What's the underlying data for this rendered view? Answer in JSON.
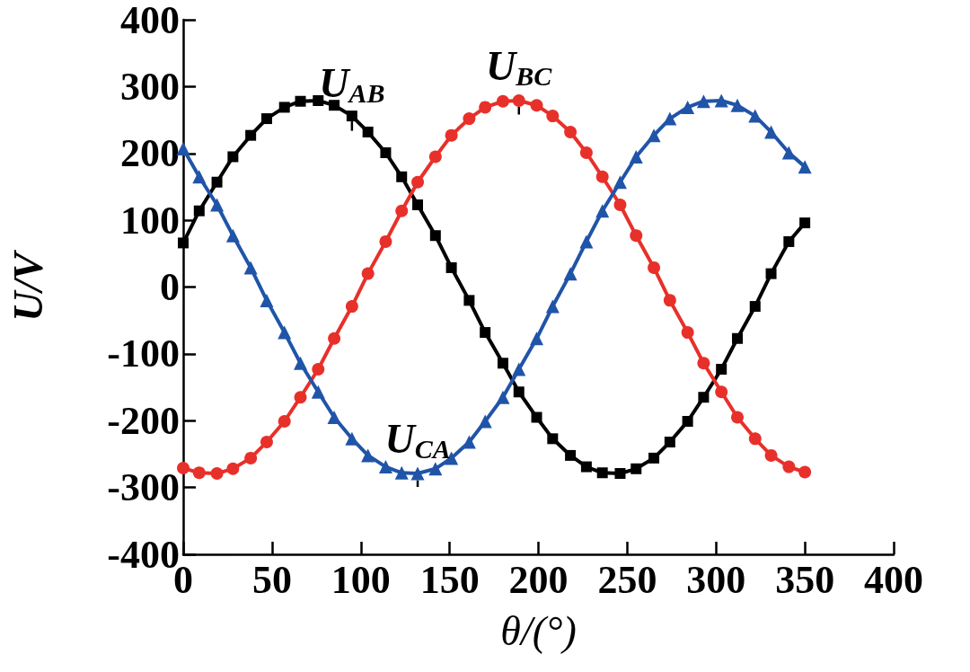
{
  "chart_data": {
    "type": "line",
    "xlabel": "θ/(°)",
    "ylabel": "U/V",
    "x": [
      0,
      9,
      19,
      28,
      38,
      47,
      57,
      66,
      76,
      85,
      95,
      104,
      114,
      123,
      132,
      142,
      151,
      161,
      170,
      180,
      189,
      199,
      208,
      218,
      227,
      236,
      246,
      255,
      265,
      274,
      284,
      293,
      303,
      312,
      322,
      331,
      341,
      350
    ],
    "series": [
      {
        "name": "U$_{AB}$",
        "color": "#000000",
        "marker": "square",
        "values": [
          66,
          114,
          157,
          195,
          227,
          252,
          269,
          278,
          279,
          272,
          256,
          232,
          201,
          165,
          123,
          77,
          29,
          -20,
          -68,
          -114,
          -157,
          -195,
          -227,
          -252,
          -269,
          -278,
          -279,
          -272,
          -256,
          -232,
          -201,
          -165,
          -123,
          -77,
          -29,
          20,
          68,
          96
        ]
      },
      {
        "name": "U$_{BC}$",
        "color": "#e8302a",
        "marker": "circle",
        "values": [
          -271,
          -278,
          -279,
          -272,
          -256,
          -232,
          -201,
          -165,
          -123,
          -77,
          -29,
          20,
          68,
          114,
          157,
          195,
          227,
          252,
          269,
          278,
          279,
          272,
          256,
          232,
          201,
          165,
          123,
          77,
          29,
          -20,
          -68,
          -114,
          -157,
          -195,
          -227,
          -252,
          -269,
          -277
        ]
      },
      {
        "name": "U$_{CA}$",
        "color": "#2054a8",
        "marker": "triangle",
        "values": [
          207,
          165,
          123,
          77,
          29,
          -20,
          -68,
          -114,
          -157,
          -195,
          -227,
          -252,
          -269,
          -278,
          -279,
          -272,
          -256,
          -232,
          -201,
          -165,
          -123,
          -77,
          -29,
          20,
          68,
          114,
          157,
          195,
          227,
          252,
          269,
          278,
          279,
          272,
          256,
          232,
          201,
          180
        ]
      }
    ],
    "xlim": [
      0,
      400
    ],
    "xticks": [
      0,
      50,
      100,
      150,
      200,
      250,
      300,
      350,
      400
    ],
    "ylim": [
      -400,
      400
    ],
    "yticks": [
      -400,
      -300,
      -200,
      -100,
      0,
      100,
      200,
      300,
      400
    ],
    "grid": false,
    "legend": false,
    "line_style": "solid"
  }
}
